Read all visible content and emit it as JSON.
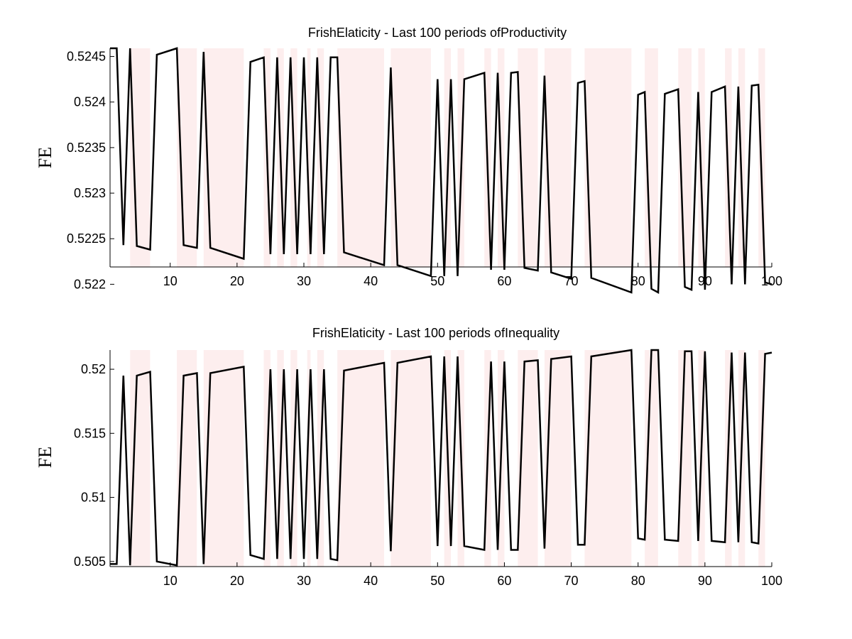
{
  "chart_data": [
    {
      "type": "line",
      "title": "FrishElaticity - Last 100 periods ofProductivity",
      "ylabel": "FE",
      "xlabel": "",
      "xlim": [
        1,
        100
      ],
      "ylim": [
        0.52219,
        0.52459
      ],
      "xticks": [
        10,
        20,
        30,
        40,
        50,
        60,
        70,
        80,
        90,
        100
      ],
      "yticks": [
        0.522,
        0.5225,
        0.523,
        0.5235,
        0.524,
        0.5245
      ],
      "ytick_labels": [
        "0.522",
        "0.5225",
        "0.523",
        "0.5235",
        "0.524",
        "0.5245"
      ],
      "grid": false,
      "shaded_regions_color": "#fdeeee",
      "line_color": "#000000",
      "shaded_regions": [
        [
          4,
          7
        ],
        [
          11,
          14
        ],
        [
          15,
          21
        ],
        [
          24,
          25
        ],
        [
          26,
          27
        ],
        [
          28,
          29
        ],
        [
          30.5,
          31
        ],
        [
          32,
          33
        ],
        [
          35,
          42
        ],
        [
          43,
          49
        ],
        [
          51,
          52
        ],
        [
          53,
          54
        ],
        [
          57,
          58
        ],
        [
          59,
          60
        ],
        [
          62,
          65
        ],
        [
          66,
          70
        ],
        [
          72,
          79
        ],
        [
          81,
          83
        ],
        [
          86,
          88
        ],
        [
          89,
          90
        ],
        [
          93,
          94
        ],
        [
          95,
          96
        ],
        [
          98,
          99
        ]
      ],
      "series": [
        {
          "x": [
            1,
            2,
            3,
            4,
            5,
            7,
            8,
            11,
            12,
            14,
            15,
            16,
            21,
            22,
            24,
            25,
            26,
            27,
            28,
            29,
            30,
            31,
            32,
            33,
            34,
            35,
            36,
            42,
            43,
            44,
            49,
            50,
            51,
            52,
            53,
            54,
            57,
            58,
            59,
            60,
            61,
            62,
            63,
            65,
            66,
            67,
            70,
            71,
            72,
            73,
            79,
            80,
            81,
            82,
            83,
            84,
            86,
            87,
            88,
            89,
            90,
            91,
            93,
            94,
            95,
            96,
            97,
            98,
            99,
            100
          ],
          "y": [
            0.52459,
            0.52459,
            0.52243,
            0.52459,
            0.52242,
            0.52238,
            0.52452,
            0.52459,
            0.52243,
            0.5224,
            0.52455,
            0.5224,
            0.52228,
            0.52444,
            0.52449,
            0.52233,
            0.52449,
            0.52233,
            0.52449,
            0.52233,
            0.52449,
            0.52233,
            0.52449,
            0.52233,
            0.52449,
            0.52449,
            0.52235,
            0.52221,
            0.52438,
            0.52221,
            0.52209,
            0.52425,
            0.52209,
            0.52425,
            0.52209,
            0.52425,
            0.52432,
            0.52216,
            0.52432,
            0.52216,
            0.52432,
            0.52433,
            0.52218,
            0.52215,
            0.52429,
            0.52213,
            0.52206,
            0.52421,
            0.52423,
            0.52207,
            0.52191,
            0.52408,
            0.52411,
            0.52195,
            0.52191,
            0.52409,
            0.52414,
            0.52197,
            0.52194,
            0.52411,
            0.52194,
            0.52411,
            0.52417,
            0.522,
            0.52417,
            0.522,
            0.52418,
            0.52419,
            0.52202,
            0.522
          ]
        }
      ]
    },
    {
      "type": "line",
      "title": "FrishElaticity - Last 100 periods ofInequality",
      "ylabel": "FE",
      "xlabel": "",
      "xlim": [
        1,
        100
      ],
      "ylim": [
        0.5046,
        0.5215
      ],
      "xticks": [
        10,
        20,
        30,
        40,
        50,
        60,
        70,
        80,
        90,
        100
      ],
      "yticks": [
        0.505,
        0.51,
        0.515,
        0.52
      ],
      "ytick_labels": [
        "0.505",
        "0.51",
        "0.515",
        "0.52"
      ],
      "grid": false,
      "shaded_regions_color": "#fdeeee",
      "line_color": "#000000",
      "shaded_regions": [
        [
          4,
          7
        ],
        [
          11,
          14
        ],
        [
          15,
          21
        ],
        [
          24,
          25
        ],
        [
          26,
          27
        ],
        [
          28,
          29
        ],
        [
          30.5,
          31
        ],
        [
          32,
          33
        ],
        [
          35,
          42
        ],
        [
          43,
          49
        ],
        [
          51,
          52
        ],
        [
          53,
          54
        ],
        [
          57,
          58
        ],
        [
          59,
          60
        ],
        [
          62,
          65
        ],
        [
          66,
          70
        ],
        [
          72,
          79
        ],
        [
          81,
          83
        ],
        [
          86,
          88
        ],
        [
          89,
          90
        ],
        [
          93,
          94
        ],
        [
          95,
          96
        ],
        [
          98,
          99
        ]
      ],
      "series": [
        {
          "x": [
            1,
            2,
            3,
            4,
            5,
            7,
            8,
            11,
            12,
            14,
            15,
            16,
            21,
            22,
            24,
            25,
            26,
            27,
            28,
            29,
            30,
            31,
            32,
            33,
            34,
            35,
            36,
            42,
            43,
            44,
            49,
            50,
            51,
            52,
            53,
            54,
            57,
            58,
            59,
            60,
            61,
            62,
            63,
            65,
            66,
            67,
            70,
            71,
            72,
            73,
            79,
            80,
            81,
            82,
            83,
            84,
            86,
            87,
            88,
            89,
            90,
            91,
            93,
            94,
            95,
            96,
            97,
            98,
            99,
            100
          ],
          "y": [
            0.5048,
            0.5048,
            0.5195,
            0.5047,
            0.5195,
            0.5198,
            0.505,
            0.5047,
            0.5195,
            0.5197,
            0.5048,
            0.5197,
            0.5202,
            0.5055,
            0.5052,
            0.52,
            0.5052,
            0.52,
            0.5052,
            0.52,
            0.5052,
            0.52,
            0.5052,
            0.52,
            0.5052,
            0.5051,
            0.5199,
            0.5205,
            0.5058,
            0.5205,
            0.521,
            0.5062,
            0.521,
            0.5062,
            0.521,
            0.5062,
            0.5059,
            0.5206,
            0.5059,
            0.5206,
            0.5059,
            0.5059,
            0.5206,
            0.5207,
            0.506,
            0.5208,
            0.521,
            0.5063,
            0.5063,
            0.521,
            0.5215,
            0.5068,
            0.5067,
            0.5215,
            0.5215,
            0.5067,
            0.5066,
            0.5214,
            0.5214,
            0.5066,
            0.5214,
            0.5066,
            0.5065,
            0.5213,
            0.5065,
            0.5213,
            0.5065,
            0.5064,
            0.5212,
            0.5213
          ]
        }
      ]
    }
  ]
}
